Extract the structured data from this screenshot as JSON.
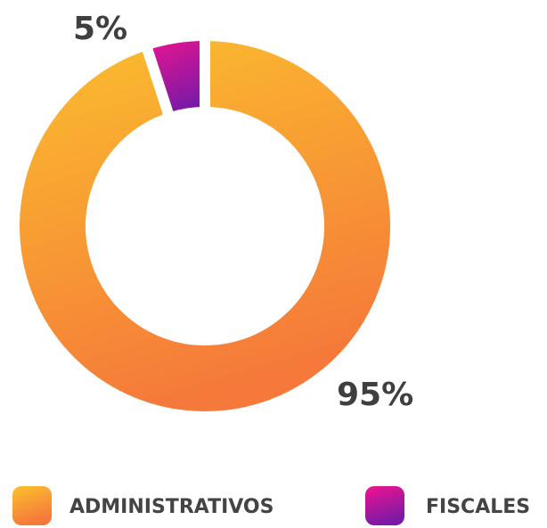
{
  "chart_data": {
    "type": "donut",
    "categories": [
      "ADMINISTRATIVOS",
      "FISCALES"
    ],
    "values": [
      95,
      5
    ],
    "value_labels": [
      "95%",
      "5%"
    ],
    "colors": [
      [
        "#fbc02d",
        "#f5793a"
      ],
      [
        "#f0138f",
        "#7a1aa6"
      ]
    ],
    "legend": "bottom"
  }
}
